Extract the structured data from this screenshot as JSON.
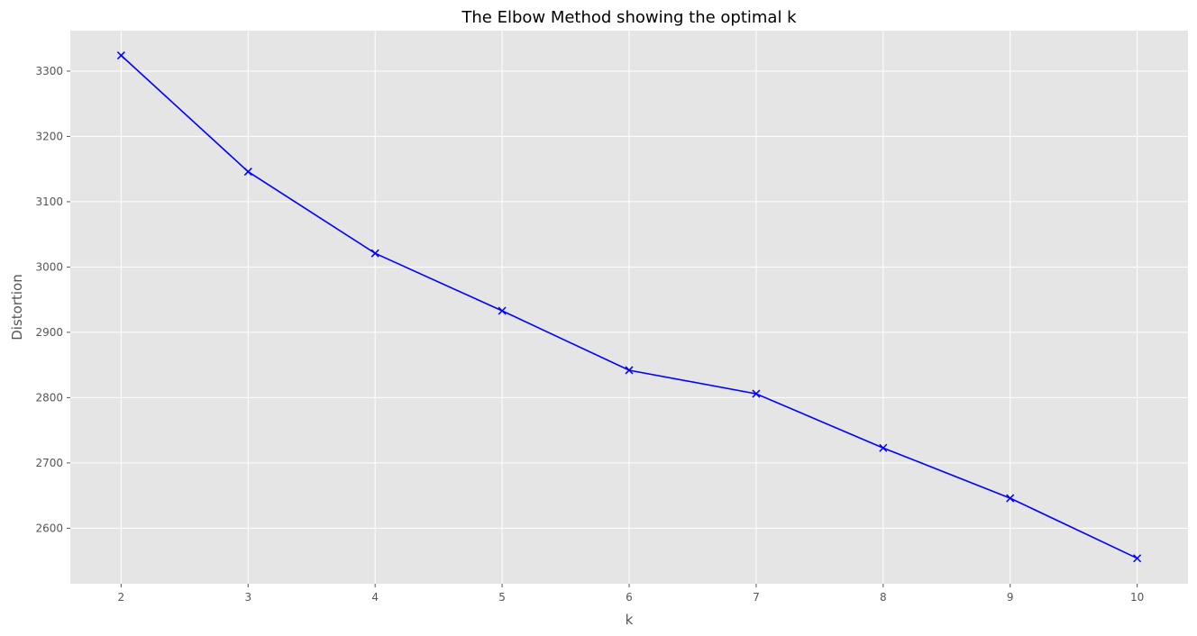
{
  "chart_data": {
    "type": "line",
    "title": "The Elbow Method showing the optimal k",
    "xlabel": "k",
    "ylabel": "Distortion",
    "x": [
      2,
      3,
      4,
      5,
      6,
      7,
      8,
      9,
      10
    ],
    "y": [
      3324,
      3146,
      3021,
      2933,
      2842,
      2806,
      2723,
      2646,
      2554
    ],
    "series": [
      {
        "values": [
          3324,
          3146,
          3021,
          2933,
          2842,
          2806,
          2723,
          2646,
          2554
        ],
        "marker": "x",
        "color": "#0000ff"
      }
    ],
    "xticks": [
      "2",
      "3",
      "4",
      "5",
      "6",
      "7",
      "8",
      "9",
      "10"
    ],
    "yticks": [
      "2600",
      "2700",
      "2800",
      "2900",
      "3000",
      "3100",
      "3200",
      "3300"
    ],
    "xlim": [
      1.6,
      10.4
    ],
    "ylim": [
      2515,
      3362
    ],
    "grid": true,
    "style": {
      "background": "#e5e5e5",
      "grid": "#ffffff"
    }
  }
}
